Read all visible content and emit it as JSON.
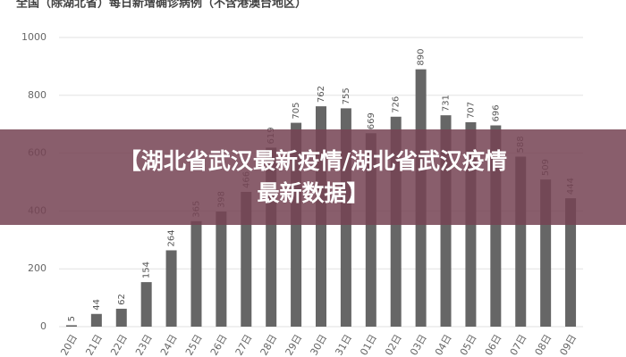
{
  "chart_data": {
    "type": "bar",
    "title": "全国（除湖北省）每日新增确诊病例（不含港澳台地区）",
    "categories": [
      "20日",
      "21日",
      "22日",
      "23日",
      "24日",
      "25日",
      "26日",
      "27日",
      "28日",
      "29日",
      "30日",
      "31日",
      "01日",
      "02日",
      "03日",
      "04日",
      "05日",
      "06日",
      "07日",
      "08日",
      "09日"
    ],
    "values": [
      5,
      44,
      62,
      154,
      264,
      365,
      398,
      466,
      619,
      705,
      762,
      755,
      669,
      726,
      890,
      731,
      707,
      696,
      588,
      509,
      444
    ],
    "color": "#666666",
    "ylim": [
      0,
      1000
    ],
    "yticks": [
      0,
      200,
      400,
      600,
      800,
      1000
    ],
    "grid": true
  },
  "overlay_lines": [
    "【湖北省武汉最新疫情/湖北省武汉疫情",
    "最新数据】"
  ]
}
